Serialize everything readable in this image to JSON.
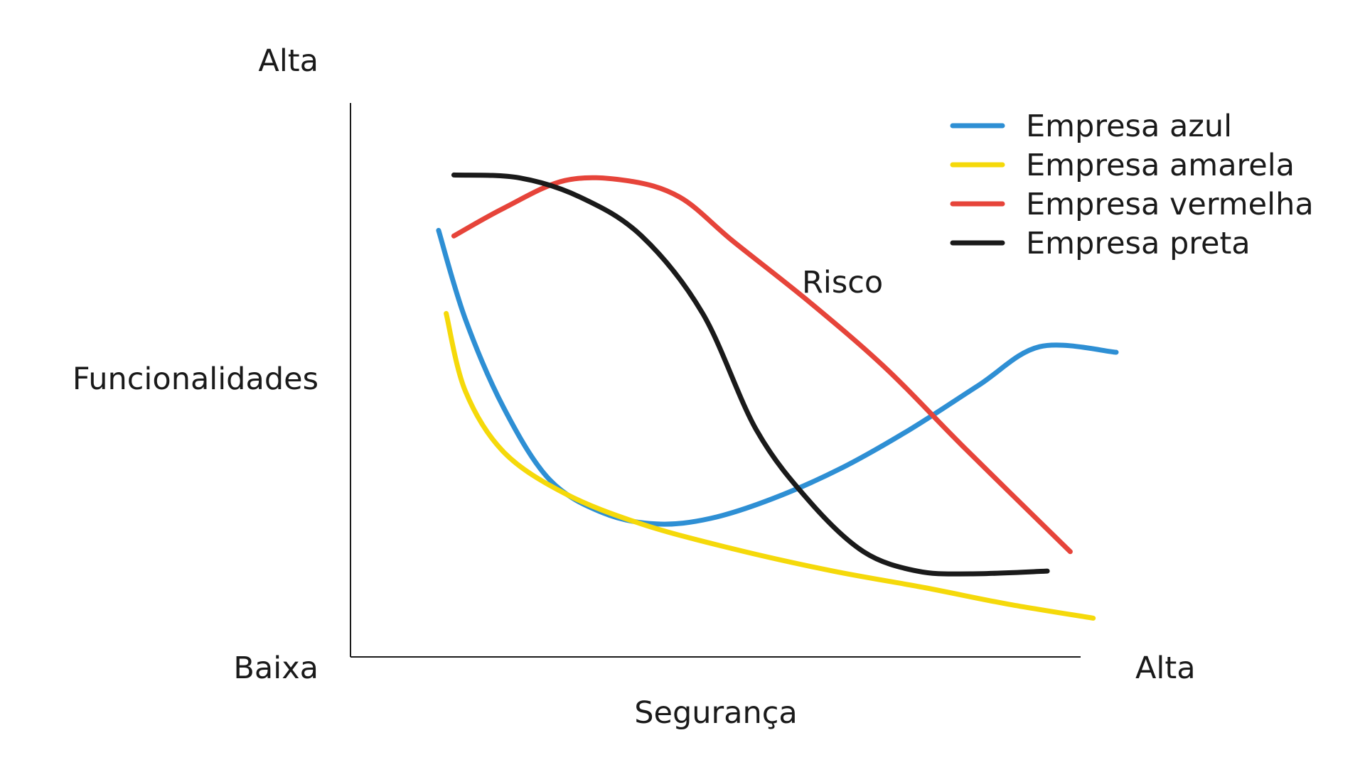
{
  "chart_data": {
    "type": "line",
    "xlabel": "Segurança",
    "ylabel": "Funcionalidades",
    "x_low_label": "Baixa",
    "x_high_label": "Alta",
    "y_high_label": "Alta",
    "annotation": "Risco",
    "xlim": [
      0,
      10
    ],
    "ylim": [
      0,
      10
    ],
    "grid": false,
    "legend_position": "top-right",
    "series": [
      {
        "name": "Empresa azul",
        "color": "#2e8fd4",
        "x": [
          1.15,
          1.5,
          2.0,
          2.6,
          3.3,
          4.0,
          4.7,
          5.5,
          6.4,
          7.3,
          8.2,
          9.0,
          10.0
        ],
        "y": [
          7.7,
          6.1,
          4.5,
          3.2,
          2.6,
          2.4,
          2.5,
          2.85,
          3.4,
          4.1,
          4.9,
          5.6,
          5.5
        ]
      },
      {
        "name": "Empresa amarela",
        "color": "#f5d90a",
        "x": [
          1.25,
          1.5,
          2.0,
          2.8,
          3.8,
          5.0,
          6.3,
          7.5,
          8.6,
          9.7
        ],
        "y": [
          6.2,
          4.8,
          3.7,
          2.95,
          2.4,
          1.95,
          1.55,
          1.25,
          0.95,
          0.7
        ]
      },
      {
        "name": "Empresa vermelha",
        "color": "#e6443a",
        "x": [
          1.35,
          2.0,
          2.8,
          3.6,
          4.3,
          5.0,
          6.0,
          7.0,
          8.0,
          9.4
        ],
        "y": [
          7.6,
          8.1,
          8.6,
          8.6,
          8.3,
          7.5,
          6.4,
          5.2,
          3.8,
          1.9
        ]
      },
      {
        "name": "Empresa preta",
        "color": "#1a1a1a",
        "x": [
          1.35,
          2.2,
          3.0,
          3.8,
          4.6,
          5.3,
          6.0,
          6.7,
          7.4,
          8.1,
          9.1
        ],
        "y": [
          8.7,
          8.65,
          8.3,
          7.6,
          6.2,
          4.1,
          2.8,
          1.9,
          1.55,
          1.5,
          1.55
        ]
      }
    ]
  }
}
